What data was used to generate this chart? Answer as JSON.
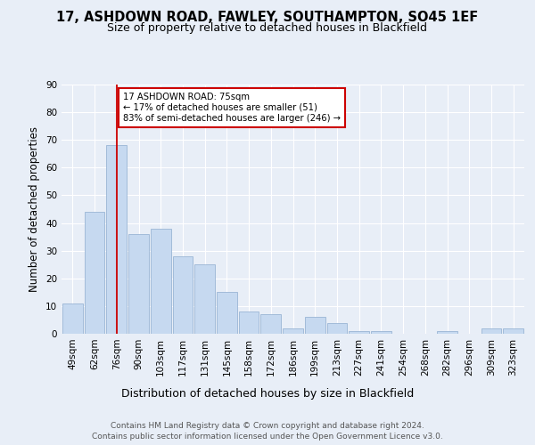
{
  "title1": "17, ASHDOWN ROAD, FAWLEY, SOUTHAMPTON, SO45 1EF",
  "title2": "Size of property relative to detached houses in Blackfield",
  "xlabel": "Distribution of detached houses by size in Blackfield",
  "ylabel": "Number of detached properties",
  "categories": [
    "49sqm",
    "62sqm",
    "76sqm",
    "90sqm",
    "103sqm",
    "117sqm",
    "131sqm",
    "145sqm",
    "158sqm",
    "172sqm",
    "186sqm",
    "199sqm",
    "213sqm",
    "227sqm",
    "241sqm",
    "254sqm",
    "268sqm",
    "282sqm",
    "296sqm",
    "309sqm",
    "323sqm"
  ],
  "values": [
    11,
    44,
    68,
    36,
    38,
    28,
    25,
    15,
    8,
    7,
    2,
    6,
    4,
    1,
    1,
    0,
    0,
    1,
    0,
    2,
    2
  ],
  "bar_color": "#c6d9f0",
  "bar_edge_color": "#9ab5d5",
  "vline_x_index": 2,
  "vline_color": "#cc0000",
  "annotation_text": "17 ASHDOWN ROAD: 75sqm\n← 17% of detached houses are smaller (51)\n83% of semi-detached houses are larger (246) →",
  "annotation_box_color": "#ffffff",
  "annotation_box_edge_color": "#cc0000",
  "ylim": [
    0,
    90
  ],
  "yticks": [
    0,
    10,
    20,
    30,
    40,
    50,
    60,
    70,
    80,
    90
  ],
  "bg_color": "#e8eef7",
  "plot_bg_color": "#e8eef7",
  "footer": "Contains HM Land Registry data © Crown copyright and database right 2024.\nContains public sector information licensed under the Open Government Licence v3.0.",
  "title1_fontsize": 10.5,
  "title2_fontsize": 9,
  "xlabel_fontsize": 9,
  "ylabel_fontsize": 8.5,
  "footer_fontsize": 6.5,
  "tick_fontsize": 7.5
}
